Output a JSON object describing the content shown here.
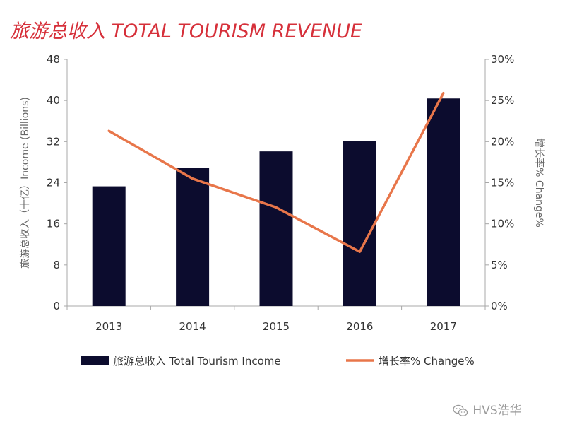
{
  "colors": {
    "bar": "#0c0c2e",
    "line": "#e8764a",
    "title": "#d6303a",
    "axis": "#a8a8a8",
    "tick_text": "#333333",
    "axis_label": "#666666"
  },
  "chart_data": {
    "type": "bar",
    "title": "旅游总收入 TOTAL TOURISM REVENUE",
    "categories": [
      "2013",
      "2014",
      "2015",
      "2016",
      "2017"
    ],
    "ylabel": "旅游总收入（十亿）Income (Billions)",
    "y2label": "增长率% Change%",
    "ylim": [
      0,
      48
    ],
    "y_ticks": [
      "0",
      "8",
      "16",
      "24",
      "32",
      "40",
      "48"
    ],
    "y2lim": [
      0,
      30
    ],
    "y2_ticks": [
      "0%",
      "5%",
      "10%",
      "15%",
      "20%",
      "25%",
      "30%"
    ],
    "grid": false,
    "legend_position": "bottom",
    "series": [
      {
        "name": "旅游总收入 Total Tourism Income",
        "kind": "bar",
        "axis": "left",
        "values": [
          23.3,
          26.9,
          30.1,
          32.1,
          40.4
        ]
      },
      {
        "name": "增长率% Change%",
        "kind": "line",
        "axis": "right",
        "values": [
          21.3,
          15.5,
          12.0,
          6.6,
          25.9
        ]
      }
    ]
  },
  "watermark": {
    "text": "HVS浩华",
    "icon": "wechat-icon"
  }
}
